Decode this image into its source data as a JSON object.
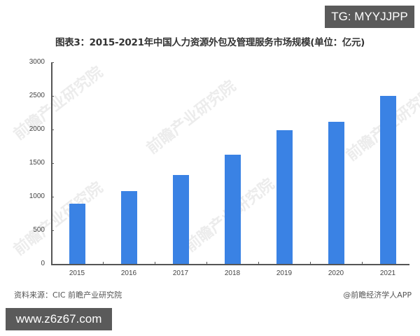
{
  "title": "图表3：2015-2021年中国人力资源外包及管理服务市场规模(单位：亿元)",
  "badges": {
    "top_right": "TG: MYYJJPP",
    "bottom_left": "www.z6z67.com"
  },
  "footer": {
    "source": "资料来源：CIC 前瞻产业研究院",
    "credit": "@前瞻经济学人APP"
  },
  "watermark": "前瞻产业研究院",
  "colors": {
    "bar": "#3a82e4",
    "axis": "#555555",
    "badge_bg": "#5a5a5a"
  },
  "chart_data": {
    "type": "bar",
    "title": "图表3：2015-2021年中国人力资源外包及管理服务市场规模(单位：亿元)",
    "xlabel": "",
    "ylabel": "亿元",
    "categories": [
      "2015",
      "2016",
      "2017",
      "2018",
      "2019",
      "2020",
      "2021"
    ],
    "values": [
      900,
      1080,
      1320,
      1620,
      1990,
      2110,
      2500
    ],
    "yticks": [
      "0",
      "500",
      "1000",
      "1500",
      "2000",
      "2500",
      "3000"
    ],
    "ylim": [
      0,
      3000
    ],
    "grid": false,
    "legend": "none"
  }
}
